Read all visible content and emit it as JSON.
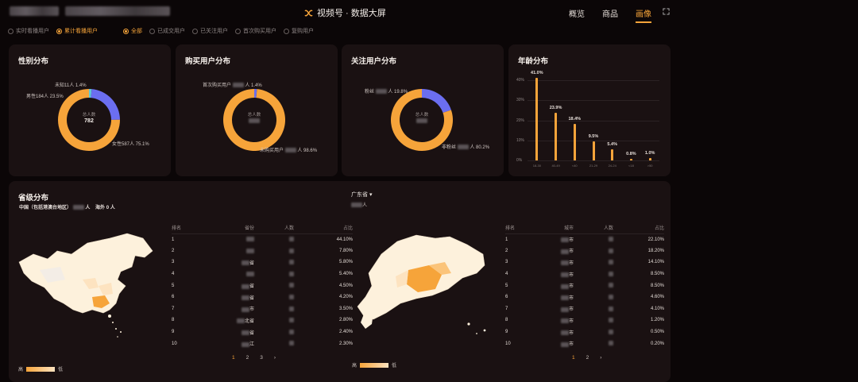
{
  "header": {
    "app_title": "视频号 · 数据大屏",
    "nav": [
      "概览",
      "商品",
      "画像"
    ],
    "active_nav": "画像"
  },
  "filters": {
    "group1": [
      "实时看播用户",
      "累计看播用户"
    ],
    "group2": [
      "全部",
      "已成交用户",
      "已关注用户",
      "首次购买用户",
      "复购用户"
    ]
  },
  "gender": {
    "title": "性别分布",
    "center_label": "总人数",
    "center_value": "782",
    "labels": [
      "未知11人 1.4%",
      "男性184人 23.5%",
      "女性587人 75.1%"
    ]
  },
  "purchase": {
    "title": "购买用户分布",
    "center_label": "总人数",
    "label_first_a": "首次购买用户",
    "label_first_b": "人 1.4%",
    "label_non_a": "未购买用户",
    "label_non_b": "人 98.6%"
  },
  "follow": {
    "title": "关注用户分布",
    "center_label": "总人数",
    "label_fan_a": "粉丝",
    "label_fan_b": "人 19.8%",
    "label_non": "非粉丝",
    "label_non_b": "人 80.2%"
  },
  "age": {
    "title": "年龄分布",
    "y_ticks": [
      "40%",
      "30%",
      "20%",
      "10%",
      "0%"
    ]
  },
  "chart_data": [
    {
      "type": "pie",
      "title": "性别分布",
      "categories": [
        "未知",
        "男性",
        "女性"
      ],
      "values": [
        1.4,
        23.5,
        75.1
      ],
      "counts": [
        11,
        184,
        587
      ],
      "colors": [
        "#5ec8d8",
        "#6b6ef0",
        "#f6a43a"
      ]
    },
    {
      "type": "pie",
      "title": "购买用户分布",
      "categories": [
        "首次购买用户",
        "未购买用户"
      ],
      "values": [
        1.4,
        98.6
      ],
      "colors": [
        "#6b6ef0",
        "#f6a43a"
      ]
    },
    {
      "type": "pie",
      "title": "关注用户分布",
      "categories": [
        "粉丝",
        "非粉丝"
      ],
      "values": [
        19.8,
        80.2
      ],
      "colors": [
        "#6b6ef0",
        "#f6a43a"
      ]
    },
    {
      "type": "bar",
      "title": "年龄分布",
      "categories": [
        "18-30",
        "40-49",
        "<40",
        "21-29",
        "24-24",
        "<18",
        ">50"
      ],
      "values": [
        41.0,
        23.9,
        18.4,
        9.5,
        5.4,
        0.8,
        1.0
      ],
      "value_labels": [
        "41.0%",
        "23.9%",
        "18.4%",
        "9.5%",
        "5.4%",
        "0.8%",
        "1.0%"
      ],
      "ylim": [
        0,
        40
      ],
      "color": "#f6a43a"
    }
  ],
  "province": {
    "title": "省级分布",
    "summary_a": "中国（包括港澳台地区）",
    "summary_b": "人",
    "summary_c": "海外 0 人",
    "headers": [
      "排名",
      "省份",
      "人数",
      "占比"
    ],
    "rows": [
      {
        "rank": "1",
        "name": "",
        "pct": "44.10%"
      },
      {
        "rank": "2",
        "name": "",
        "pct": "7.80%"
      },
      {
        "rank": "3",
        "name": "省",
        "pct": "5.80%"
      },
      {
        "rank": "4",
        "name": "",
        "pct": "5.40%"
      },
      {
        "rank": "5",
        "name": "省",
        "pct": "4.50%"
      },
      {
        "rank": "6",
        "name": "省",
        "pct": "4.20%"
      },
      {
        "rank": "7",
        "name": "市",
        "pct": "3.50%"
      },
      {
        "rank": "8",
        "name": "北省",
        "pct": "2.80%"
      },
      {
        "rank": "9",
        "name": "省",
        "pct": "2.40%"
      },
      {
        "rank": "10",
        "name": "江",
        "pct": "2.30%"
      }
    ],
    "pages": [
      "1",
      "2",
      "3",
      "›"
    ],
    "legend_high": "高",
    "legend_low": "低"
  },
  "city": {
    "title": "广东省",
    "sub": "人",
    "headers": [
      "排名",
      "城市",
      "人数",
      "占比"
    ],
    "rows": [
      {
        "rank": "1",
        "name": "市",
        "pct": "22.10%"
      },
      {
        "rank": "2",
        "name": "市",
        "pct": "18.20%"
      },
      {
        "rank": "3",
        "name": "市",
        "pct": "14.10%"
      },
      {
        "rank": "4",
        "name": "市",
        "pct": "8.50%"
      },
      {
        "rank": "5",
        "name": "市",
        "pct": "8.50%"
      },
      {
        "rank": "6",
        "name": "市",
        "pct": "4.60%"
      },
      {
        "rank": "7",
        "name": "市",
        "pct": "4.10%"
      },
      {
        "rank": "8",
        "name": "市",
        "pct": "1.20%"
      },
      {
        "rank": "9",
        "name": "市",
        "pct": "0.50%"
      },
      {
        "rank": "10",
        "name": "市",
        "pct": "0.20%"
      }
    ],
    "pages": [
      "1",
      "2",
      "›"
    ],
    "legend_high": "高",
    "legend_low": "低"
  }
}
